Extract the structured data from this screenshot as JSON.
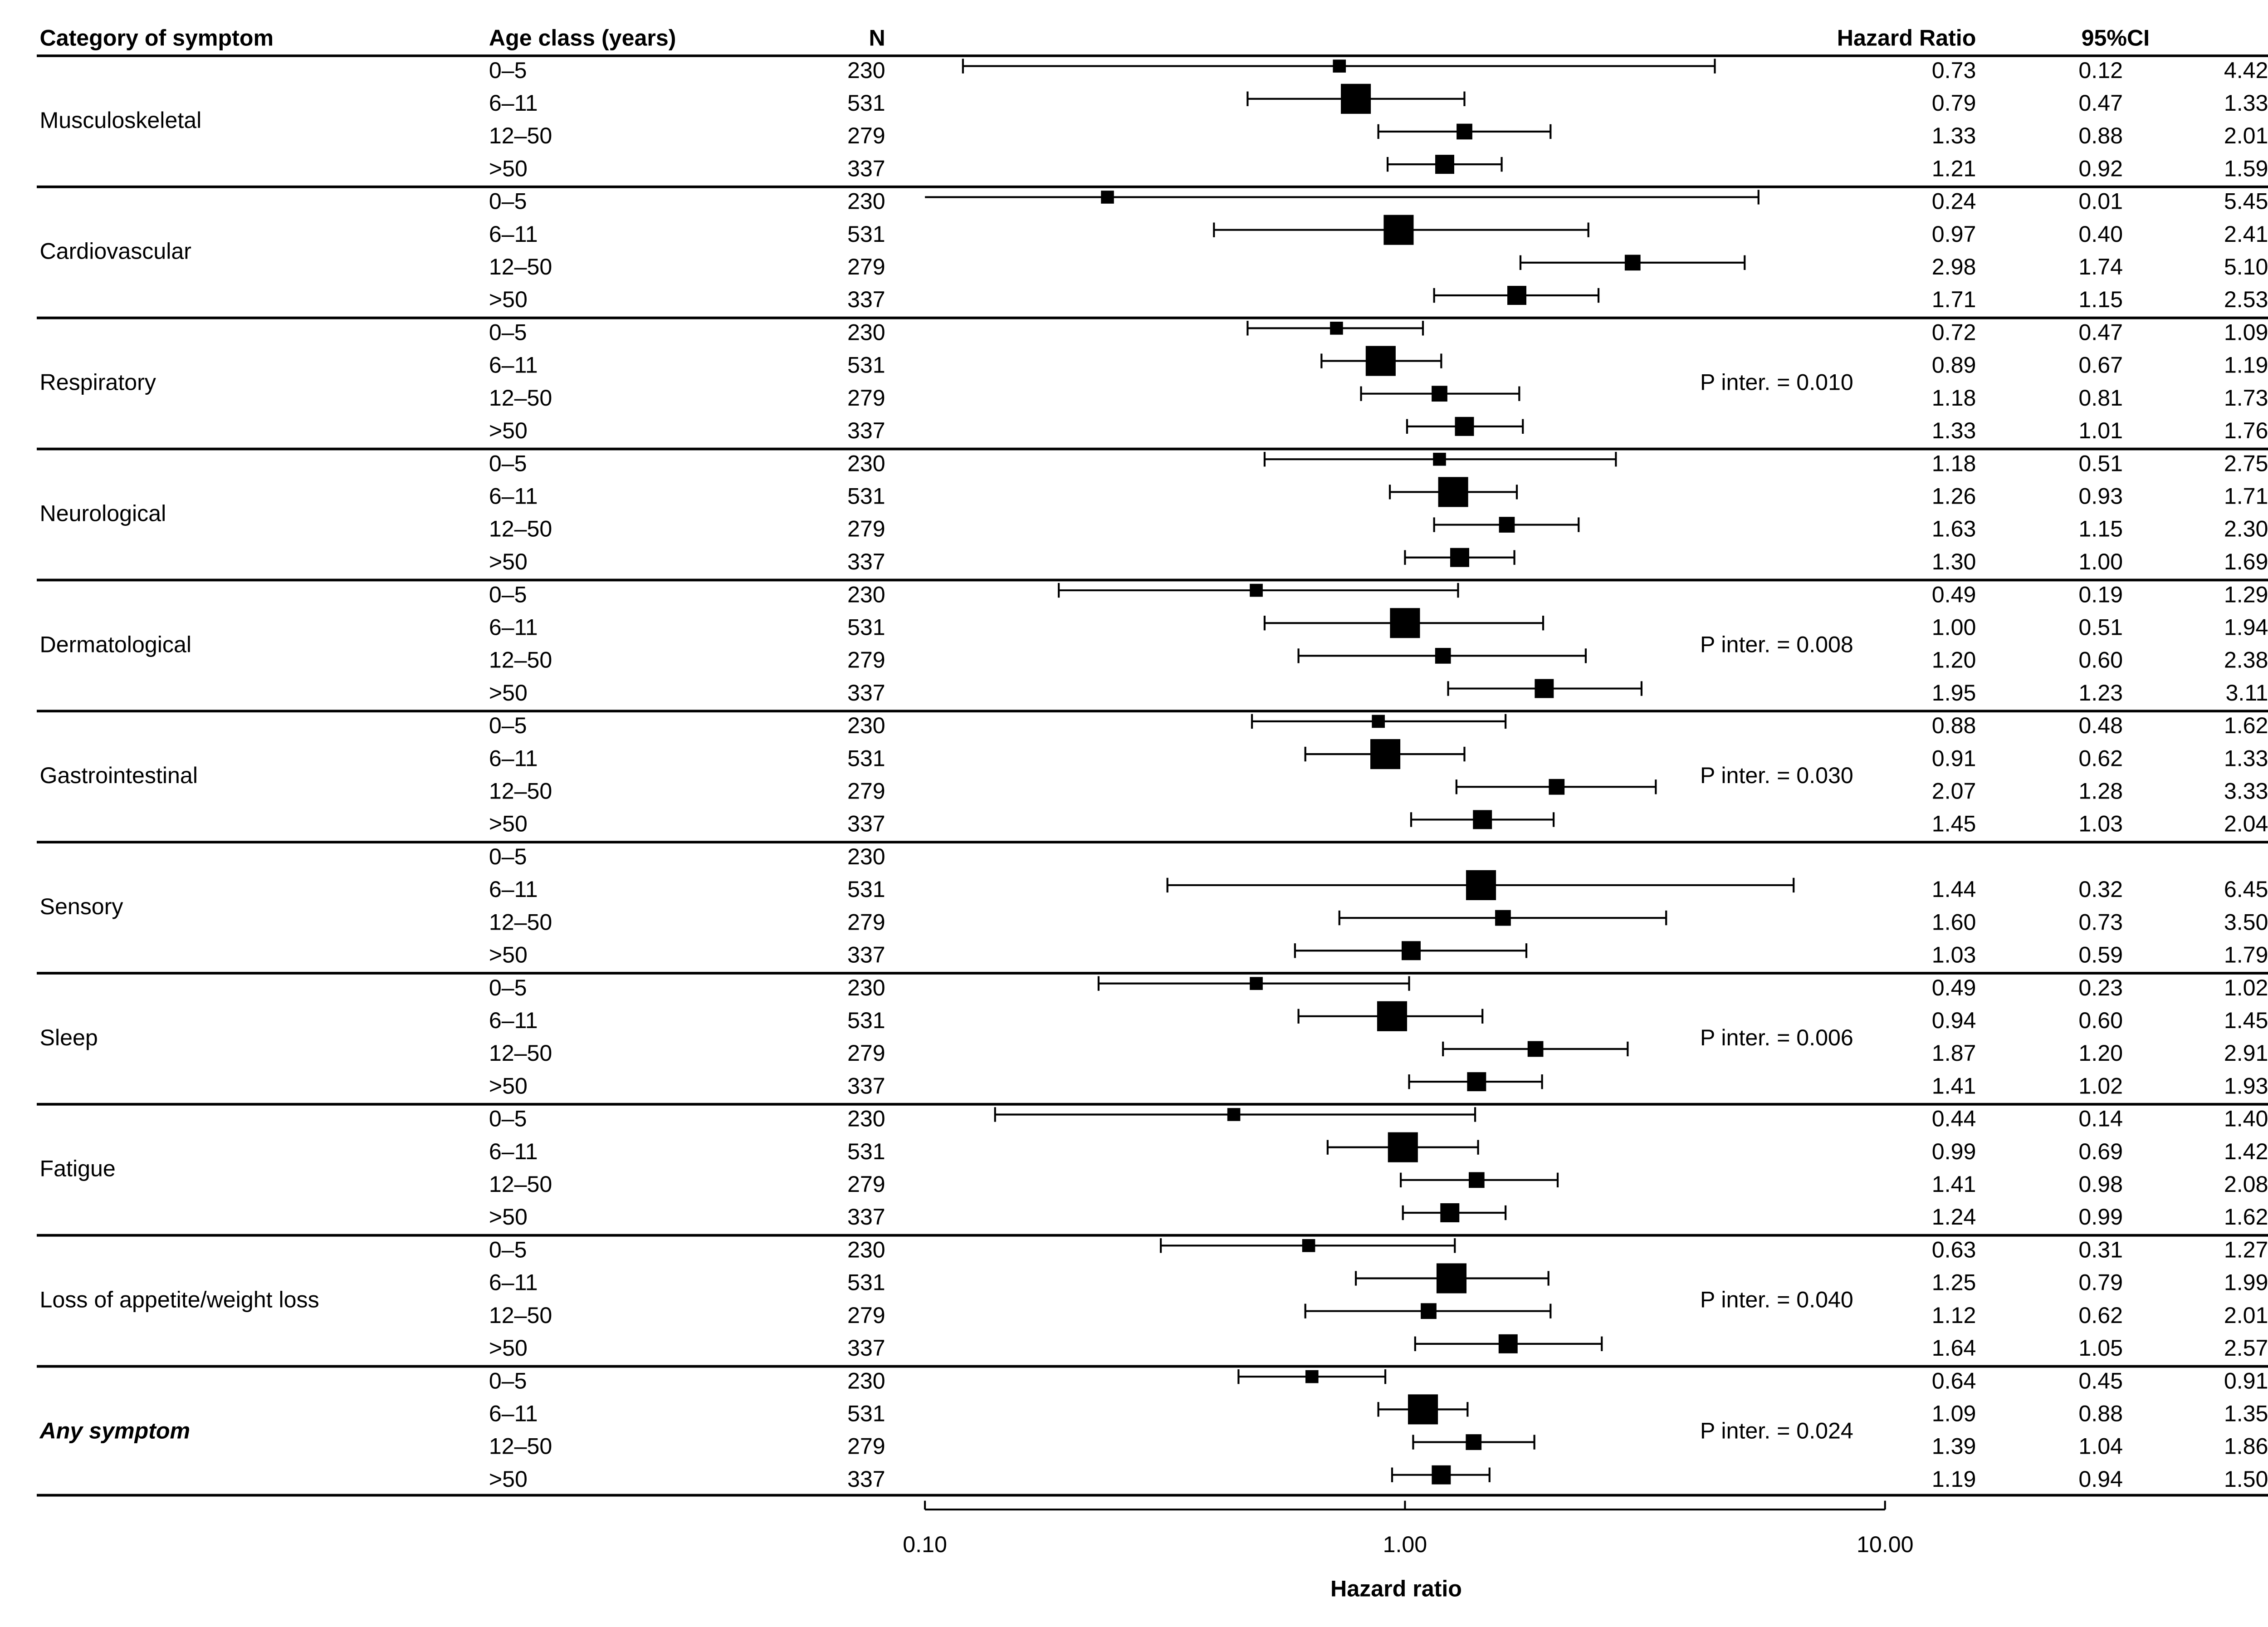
{
  "chart_data": {
    "type": "forest",
    "columns": [
      "Category of symptom",
      "Age class (years)",
      "N",
      "Hazard Ratio",
      "95%CI"
    ],
    "xlabel": "Hazard ratio",
    "log_scale": true,
    "xlim": [
      0.1,
      10
    ],
    "xticks": [
      {
        "value": 0.1,
        "label": "0.10"
      },
      {
        "value": 1,
        "label": "1.00"
      },
      {
        "value": 10,
        "label": "10.00"
      }
    ],
    "color": "#000000",
    "groups": [
      {
        "name": "Musculoskeletal",
        "ages": [
          "0–5",
          "6–11",
          "12–50",
          ">50"
        ],
        "n": [
          230,
          531,
          279,
          337
        ],
        "hr": [
          0.73,
          0.79,
          1.33,
          1.21
        ],
        "hr_labels": [
          "0.73",
          "0.79",
          "1.33",
          "1.21"
        ],
        "ci_low": [
          0.12,
          0.47,
          0.88,
          0.92
        ],
        "ci_low_labels": [
          "0.12",
          "0.47",
          "0.88",
          "0.92"
        ],
        "ci_high": [
          4.42,
          1.33,
          2.01,
          1.59
        ],
        "ci_high_labels": [
          "4.42",
          "1.33",
          "2.01",
          "1.59"
        ]
      },
      {
        "name": "Cardiovascular",
        "ages": [
          "0–5",
          "6–11",
          "12–50",
          ">50"
        ],
        "n": [
          230,
          531,
          279,
          337
        ],
        "hr": [
          0.24,
          0.97,
          2.98,
          1.71
        ],
        "hr_labels": [
          "0.24",
          "0.97",
          "2.98",
          "1.71"
        ],
        "ci_low": [
          0.01,
          0.4,
          1.74,
          1.15
        ],
        "ci_low_labels": [
          "0.01",
          "0.40",
          "1.74",
          "1.15"
        ],
        "ci_high": [
          5.45,
          2.41,
          5.1,
          2.53
        ],
        "ci_high_labels": [
          "5.45",
          "2.41",
          "5.10",
          "2.53"
        ]
      },
      {
        "name": "Respiratory",
        "p_inter": "P inter. = 0.010",
        "ages": [
          "0–5",
          "6–11",
          "12–50",
          ">50"
        ],
        "n": [
          230,
          531,
          279,
          337
        ],
        "hr": [
          0.72,
          0.89,
          1.18,
          1.33
        ],
        "hr_labels": [
          "0.72",
          "0.89",
          "1.18",
          "1.33"
        ],
        "ci_low": [
          0.47,
          0.67,
          0.81,
          1.01
        ],
        "ci_low_labels": [
          "0.47",
          "0.67",
          "0.81",
          "1.01"
        ],
        "ci_high": [
          1.09,
          1.19,
          1.73,
          1.76
        ],
        "ci_high_labels": [
          "1.09",
          "1.19",
          "1.73",
          "1.76"
        ]
      },
      {
        "name": "Neurological",
        "ages": [
          "0–5",
          "6–11",
          "12–50",
          ">50"
        ],
        "n": [
          230,
          531,
          279,
          337
        ],
        "hr": [
          1.18,
          1.26,
          1.63,
          1.3
        ],
        "hr_labels": [
          "1.18",
          "1.26",
          "1.63",
          "1.30"
        ],
        "ci_low": [
          0.51,
          0.93,
          1.15,
          1
        ],
        "ci_low_labels": [
          "0.51",
          "0.93",
          "1.15",
          "1.00"
        ],
        "ci_high": [
          2.75,
          1.71,
          2.3,
          1.69
        ],
        "ci_high_labels": [
          "2.75",
          "1.71",
          "2.30",
          "1.69"
        ]
      },
      {
        "name": "Dermatological",
        "p_inter": "P inter. = 0.008",
        "ages": [
          "0–5",
          "6–11",
          "12–50",
          ">50"
        ],
        "n": [
          230,
          531,
          279,
          337
        ],
        "hr": [
          0.49,
          1,
          1.2,
          1.95
        ],
        "hr_labels": [
          "0.49",
          "1.00",
          "1.20",
          "1.95"
        ],
        "ci_low": [
          0.19,
          0.51,
          0.6,
          1.23
        ],
        "ci_low_labels": [
          "0.19",
          "0.51",
          "0.60",
          "1.23"
        ],
        "ci_high": [
          1.29,
          1.94,
          2.38,
          3.11
        ],
        "ci_high_labels": [
          "1.29",
          "1.94",
          "2.38",
          "3.11"
        ]
      },
      {
        "name": "Gastrointestinal",
        "p_inter": "P inter. = 0.030",
        "ages": [
          "0–5",
          "6–11",
          "12–50",
          ">50"
        ],
        "n": [
          230,
          531,
          279,
          337
        ],
        "hr": [
          0.88,
          0.91,
          2.07,
          1.45
        ],
        "hr_labels": [
          "0.88",
          "0.91",
          "2.07",
          "1.45"
        ],
        "ci_low": [
          0.48,
          0.62,
          1.28,
          1.03
        ],
        "ci_low_labels": [
          "0.48",
          "0.62",
          "1.28",
          "1.03"
        ],
        "ci_high": [
          1.62,
          1.33,
          3.33,
          2.04
        ],
        "ci_high_labels": [
          "1.62",
          "1.33",
          "3.33",
          "2.04"
        ]
      },
      {
        "name": "Sensory",
        "ages": [
          "0–5",
          "6–11",
          "12–50",
          ">50"
        ],
        "n": [
          230,
          531,
          279,
          337
        ],
        "hr": [
          null,
          1.44,
          1.6,
          1.03
        ],
        "hr_labels": [
          null,
          "1.44",
          "1.60",
          "1.03"
        ],
        "ci_low": [
          null,
          0.32,
          0.73,
          0.59
        ],
        "ci_low_labels": [
          null,
          "0.32",
          "0.73",
          "0.59"
        ],
        "ci_high": [
          null,
          6.45,
          3.5,
          1.79
        ],
        "ci_high_labels": [
          null,
          "6.45",
          "3.50",
          "1.79"
        ]
      },
      {
        "name": "Sleep",
        "p_inter": "P inter. = 0.006",
        "ages": [
          "0–5",
          "6–11",
          "12–50",
          ">50"
        ],
        "n": [
          230,
          531,
          279,
          337
        ],
        "hr": [
          0.49,
          0.94,
          1.87,
          1.41
        ],
        "hr_labels": [
          "0.49",
          "0.94",
          "1.87",
          "1.41"
        ],
        "ci_low": [
          0.23,
          0.6,
          1.2,
          1.02
        ],
        "ci_low_labels": [
          "0.23",
          "0.60",
          "1.20",
          "1.02"
        ],
        "ci_high": [
          1.02,
          1.45,
          2.91,
          1.93
        ],
        "ci_high_labels": [
          "1.02",
          "1.45",
          "2.91",
          "1.93"
        ]
      },
      {
        "name": "Fatigue",
        "ages": [
          "0–5",
          "6–11",
          "12–50",
          ">50"
        ],
        "n": [
          230,
          531,
          279,
          337
        ],
        "hr": [
          0.44,
          0.99,
          1.41,
          1.24
        ],
        "hr_labels": [
          "0.44",
          "0.99",
          "1.41",
          "1.24"
        ],
        "ci_low": [
          0.14,
          0.69,
          0.98,
          0.99
        ],
        "ci_low_labels": [
          "0.14",
          "0.69",
          "0.98",
          "0.99"
        ],
        "ci_high": [
          1.4,
          1.42,
          2.08,
          1.62
        ],
        "ci_high_labels": [
          "1.40",
          "1.42",
          "2.08",
          "1.62"
        ]
      },
      {
        "name": "Loss of appetite/weight loss",
        "p_inter": "P inter. = 0.040",
        "ages": [
          "0–5",
          "6–11",
          "12–50",
          ">50"
        ],
        "n": [
          230,
          531,
          279,
          337
        ],
        "hr": [
          0.63,
          1.25,
          1.12,
          1.64
        ],
        "hr_labels": [
          "0.63",
          "1.25",
          "1.12",
          "1.64"
        ],
        "ci_low": [
          0.31,
          0.79,
          0.62,
          1.05
        ],
        "ci_low_labels": [
          "0.31",
          "0.79",
          "0.62",
          "1.05"
        ],
        "ci_high": [
          1.27,
          1.99,
          2.01,
          2.57
        ],
        "ci_high_labels": [
          "1.27",
          "1.99",
          "2.01",
          "2.57"
        ]
      },
      {
        "name": "Any symptom",
        "emphasized": true,
        "p_inter": "P inter. = 0.024",
        "ages": [
          "0–5",
          "6–11",
          "12–50",
          ">50"
        ],
        "n": [
          230,
          531,
          279,
          337
        ],
        "hr": [
          0.64,
          1.09,
          1.39,
          1.19
        ],
        "hr_labels": [
          "0.64",
          "1.09",
          "1.39",
          "1.19"
        ],
        "ci_low": [
          0.45,
          0.88,
          1.04,
          0.94
        ],
        "ci_low_labels": [
          "0.45",
          "0.88",
          "1.04",
          "0.94"
        ],
        "ci_high": [
          0.91,
          1.35,
          1.86,
          1.5
        ],
        "ci_high_labels": [
          "0.91",
          "1.35",
          "1.86",
          "1.50"
        ]
      }
    ]
  }
}
